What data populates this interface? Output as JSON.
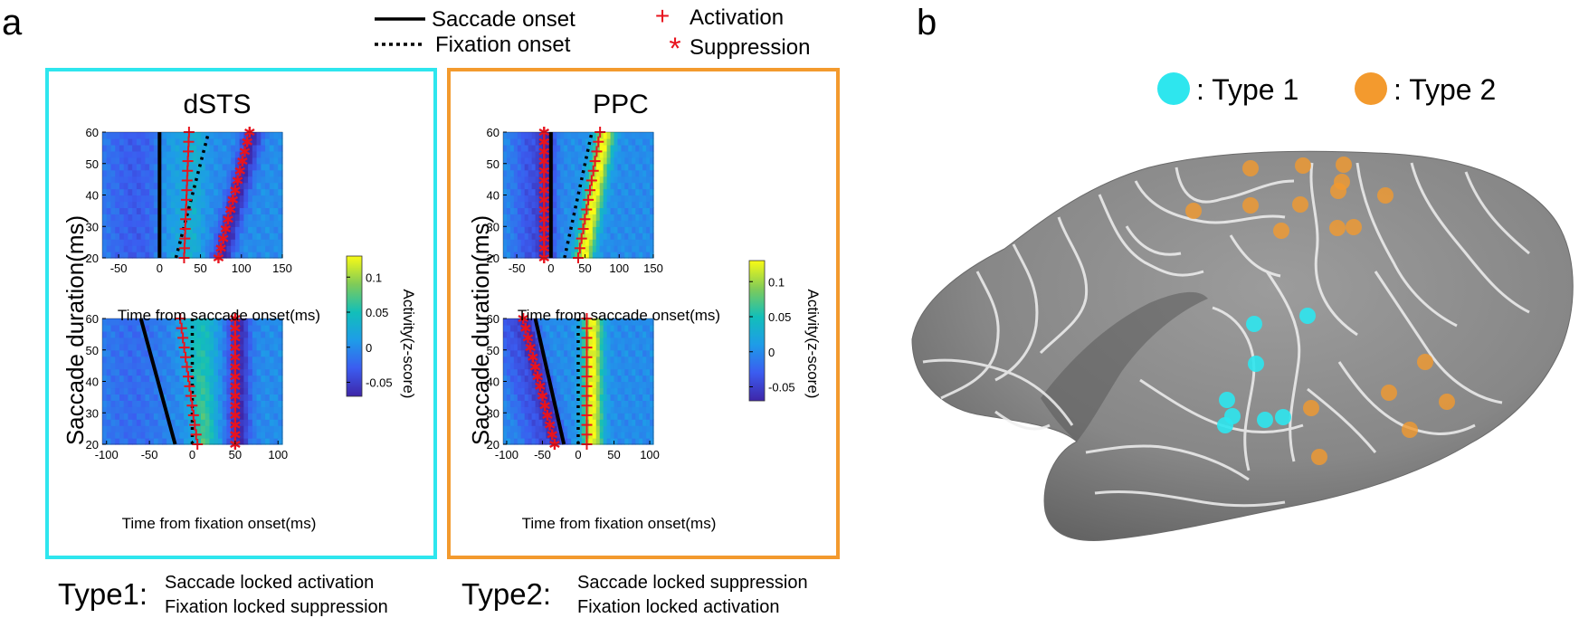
{
  "panel_labels": {
    "a": "a",
    "b": "b"
  },
  "legend": {
    "saccade_onset": "Saccade onset",
    "fixation_onset": "Fixation onset",
    "activation": "Activation",
    "suppression": "Suppression",
    "activation_symbol": "+",
    "suppression_symbol": "*"
  },
  "regions": {
    "left": {
      "title": "dSTS",
      "frame_color": "#2ee6ee",
      "type_label": "Type1:",
      "desc1": "Saccade locked activation",
      "desc2": "Fixation locked suppression"
    },
    "right": {
      "title": "PPC",
      "frame_color": "#f39a2e",
      "type_label": "Type2:",
      "desc1": "Saccade locked suppression",
      "desc2": "Fixation locked activation"
    }
  },
  "axis": {
    "ylabel": "Saccade duration(ms)",
    "xlabel_saccade": "Time from saccade onset(ms)",
    "xlabel_fixation": "Time from fixation onset(ms)",
    "colorbar_label": "Activity(z-score)"
  },
  "colorbar": {
    "min": -0.07,
    "max": 0.13,
    "ticks": [
      "0.1",
      "0.05",
      "0",
      "-0.05"
    ],
    "tick_values": [
      0.1,
      0.05,
      0,
      -0.05
    ]
  },
  "chart_data": [
    {
      "type": "heatmap",
      "region": "dSTS",
      "align": "saccade",
      "xlim": [
        -70,
        150
      ],
      "ylim": [
        20,
        60
      ],
      "xticks": [
        -50,
        0,
        50,
        100,
        150
      ],
      "yticks": [
        20,
        30,
        40,
        50,
        60
      ],
      "xticklabels": [
        "-50",
        "0",
        "50",
        "100",
        "150"
      ],
      "yticklabels": [
        "20",
        "30",
        "40",
        "50",
        "60"
      ],
      "saccade_line": [
        [
          0,
          20
        ],
        [
          0,
          60
        ]
      ],
      "fixation_line": [
        [
          20,
          20
        ],
        [
          60,
          60
        ]
      ],
      "activation_x0": 30,
      "activation_slope": 0.15,
      "suppression_x0": 72,
      "suppression_slope": 0.95
    },
    {
      "type": "heatmap",
      "region": "dSTS",
      "align": "fixation",
      "xlim": [
        -105,
        105
      ],
      "ylim": [
        20,
        60
      ],
      "xticks": [
        -100,
        -50,
        0,
        50,
        100
      ],
      "yticks": [
        20,
        30,
        40,
        50,
        60
      ],
      "xticklabels": [
        "-100",
        "-50",
        "0",
        "50",
        "100"
      ],
      "yticklabels": [
        "20",
        "30",
        "40",
        "50",
        "60"
      ],
      "saccade_line": [
        [
          -20,
          20
        ],
        [
          -60,
          60
        ]
      ],
      "fixation_line": [
        [
          0,
          20
        ],
        [
          0,
          60
        ]
      ],
      "activation_x0": 6,
      "activation_slope": -0.5,
      "suppression_x0": 50,
      "suppression_slope": 0
    },
    {
      "type": "heatmap",
      "region": "PPC",
      "align": "saccade",
      "xlim": [
        -70,
        150
      ],
      "ylim": [
        20,
        60
      ],
      "xticks": [
        -50,
        0,
        50,
        100,
        150
      ],
      "yticks": [
        20,
        30,
        40,
        50,
        60
      ],
      "xticklabels": [
        "-50",
        "0",
        "50",
        "100",
        "150"
      ],
      "yticklabels": [
        "20",
        "30",
        "40",
        "50",
        "60"
      ],
      "saccade_line": [
        [
          0,
          20
        ],
        [
          0,
          60
        ]
      ],
      "fixation_line": [
        [
          20,
          20
        ],
        [
          60,
          60
        ]
      ],
      "activation_x0": 40,
      "activation_slope": 0.8,
      "suppression_x0": -10,
      "suppression_slope": 0
    },
    {
      "type": "heatmap",
      "region": "PPC",
      "align": "fixation",
      "xlim": [
        -105,
        105
      ],
      "ylim": [
        20,
        60
      ],
      "xticks": [
        -100,
        -50,
        0,
        50,
        100
      ],
      "yticks": [
        20,
        30,
        40,
        50,
        60
      ],
      "xticklabels": [
        "-100",
        "-50",
        "0",
        "50",
        "100"
      ],
      "yticklabels": [
        "20",
        "30",
        "40",
        "50",
        "60"
      ],
      "saccade_line": [
        [
          -20,
          20
        ],
        [
          -60,
          60
        ]
      ],
      "fixation_line": [
        [
          0,
          20
        ],
        [
          0,
          60
        ]
      ],
      "activation_x0": 12,
      "activation_slope": 0,
      "suppression_x0": -33,
      "suppression_slope": -1.1
    },
    {
      "type": "scatter",
      "region": "brain",
      "legend": [
        {
          "name": ": Type 1",
          "color": "#2ee6ee"
        },
        {
          "name": ": Type 2",
          "color": "#f39a2e"
        }
      ]
    }
  ]
}
